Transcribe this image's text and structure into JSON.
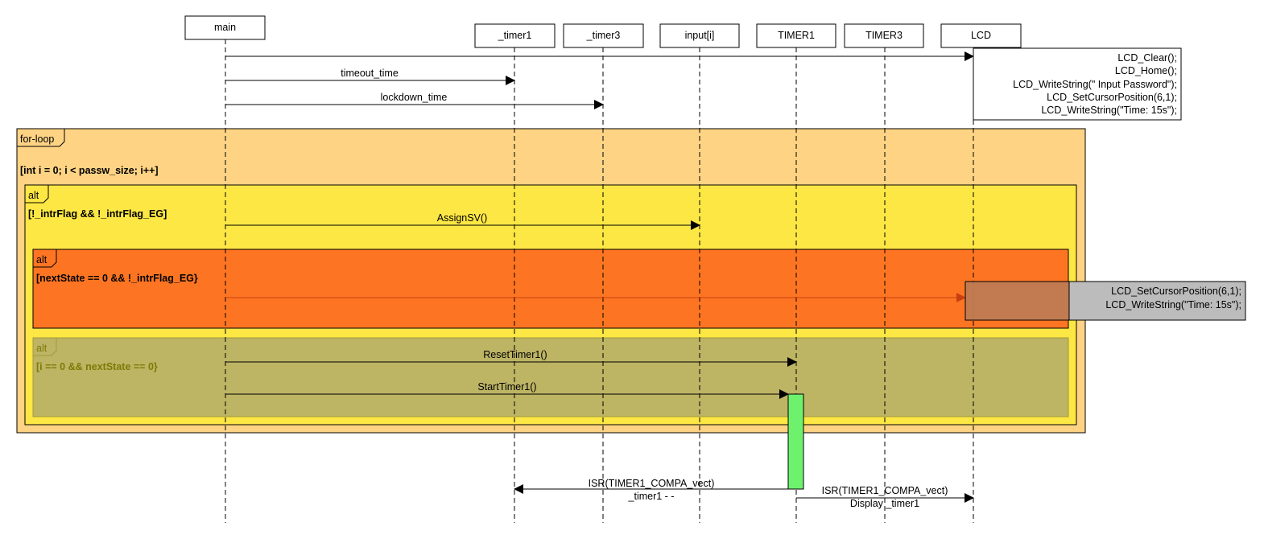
{
  "diagram": {
    "lifelines": {
      "main": "main",
      "timer1_var": "_timer1",
      "timer3_var": "_timer3",
      "input": "input[i]",
      "TIMER1": "TIMER1",
      "TIMER3": "TIMER3",
      "LCD": "LCD"
    },
    "messages": {
      "timeout": "timeout_time",
      "lockdown": "lockdown_time",
      "assign": "AssignSV()",
      "reset": "ResetTimer1()",
      "start": "StartTimer1()",
      "isr_left": "ISR(TIMER1_COMPA_vect)",
      "isr_left_sub": "_timer1 - -",
      "isr_right": "ISR(TIMER1_COMPA_vect)",
      "isr_right_sub": "Display _timer1"
    },
    "notes": {
      "lcd_init": [
        "LCD_Clear();",
        "LCD_Home();",
        "LCD_WriteString(\" Input Password\");",
        "LCD_SetCursorPosition(6,1);",
        "LCD_WriteString(\"Time: 15s\");"
      ],
      "lcd_update": [
        "LCD_SetCursorPosition(6,1);",
        "LCD_WriteString(\"Time: 15s\");"
      ]
    },
    "fragments": {
      "loop": {
        "tag": "for-loop",
        "guard": "[int i = 0; i < passw_size; i++]",
        "color": "#fed384"
      },
      "alt1": {
        "tag": "alt",
        "guard": "[!_intrFlag && !_intrFlag_EG]",
        "color": "#fde744"
      },
      "alt2": {
        "tag": "alt",
        "guard": "[nextState == 0 && !_intrFlag_EG}",
        "color": "#fd7523"
      },
      "alt3": {
        "tag": "alt",
        "guard": "[i == 0 && nextState == 0}",
        "color": "#bdb464",
        "text_color": "#7f7a06"
      }
    },
    "activation_color": "#6ef26e"
  }
}
